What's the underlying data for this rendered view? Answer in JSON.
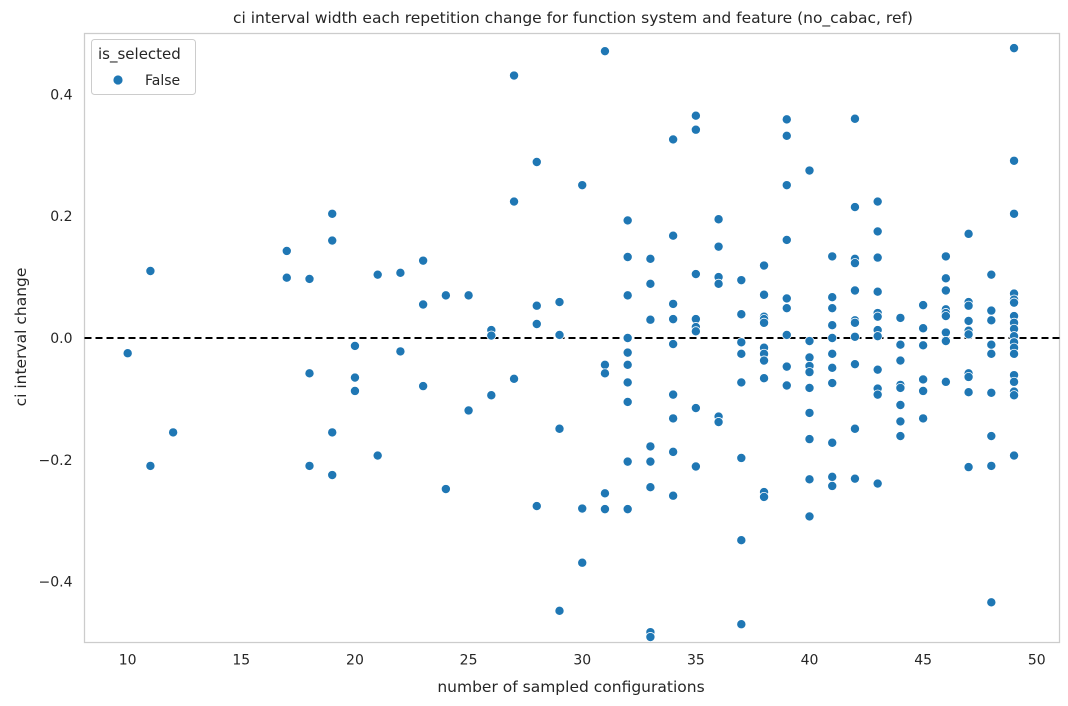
{
  "chart_data": {
    "type": "scatter",
    "title": "ci interval width each repetition change for function system and feature (no_cabac, ref)",
    "xlabel": "number of sampled configurations",
    "ylabel": "ci interval change",
    "xlim": [
      8.1,
      51.0
    ],
    "ylim": [
      -0.5,
      0.5
    ],
    "xticks": [
      10,
      15,
      20,
      25,
      30,
      35,
      40,
      45,
      50
    ],
    "yticks": [
      -0.4,
      -0.2,
      0.0,
      0.2,
      0.4
    ],
    "ytick_labels": [
      "−0.4",
      "−0.2",
      "0.0",
      "0.2",
      "0.4"
    ],
    "reference_line": {
      "y": 0.0,
      "style": "dashed",
      "color": "#000000"
    },
    "grid": false,
    "legend": {
      "title": "is_selected",
      "placement": "top-left",
      "entries": [
        "False"
      ]
    },
    "series": [
      {
        "name": "False",
        "color": "#1f77b4",
        "points": [
          [
            10,
            -0.025
          ],
          [
            11,
            0.11
          ],
          [
            11,
            -0.21
          ],
          [
            12,
            -0.155
          ],
          [
            17,
            0.143
          ],
          [
            17,
            0.099
          ],
          [
            18,
            0.097
          ],
          [
            18,
            -0.058
          ],
          [
            18,
            -0.21
          ],
          [
            19,
            0.204
          ],
          [
            19,
            0.16
          ],
          [
            19,
            -0.155
          ],
          [
            19,
            -0.225
          ],
          [
            20,
            -0.013
          ],
          [
            20,
            -0.065
          ],
          [
            20,
            -0.087
          ],
          [
            21,
            0.104
          ],
          [
            21,
            -0.193
          ],
          [
            22,
            0.107
          ],
          [
            22,
            -0.022
          ],
          [
            23,
            0.127
          ],
          [
            23,
            0.055
          ],
          [
            23,
            -0.079
          ],
          [
            24,
            0.07
          ],
          [
            24,
            -0.248
          ],
          [
            25,
            0.07
          ],
          [
            25,
            -0.119
          ],
          [
            26,
            0.013
          ],
          [
            26,
            0.004
          ],
          [
            26,
            -0.094
          ],
          [
            27,
            0.431
          ],
          [
            27,
            0.224
          ],
          [
            27,
            -0.067
          ],
          [
            28,
            0.289
          ],
          [
            28,
            0.053
          ],
          [
            28,
            0.023
          ],
          [
            28,
            -0.276
          ],
          [
            29,
            0.059
          ],
          [
            29,
            0.005
          ],
          [
            29,
            -0.149
          ],
          [
            29,
            -0.448
          ],
          [
            30,
            0.251
          ],
          [
            30,
            -0.28
          ],
          [
            30,
            -0.369
          ],
          [
            31,
            0.471
          ],
          [
            31,
            -0.044
          ],
          [
            31,
            -0.058
          ],
          [
            31,
            -0.255
          ],
          [
            31,
            -0.281
          ],
          [
            32,
            0.193
          ],
          [
            32,
            0.133
          ],
          [
            32,
            0.07
          ],
          [
            32,
            0.0
          ],
          [
            32,
            -0.024
          ],
          [
            32,
            -0.044
          ],
          [
            32,
            -0.073
          ],
          [
            32,
            -0.105
          ],
          [
            32,
            -0.203
          ],
          [
            32,
            -0.281
          ],
          [
            33,
            0.13
          ],
          [
            33,
            0.089
          ],
          [
            33,
            0.03
          ],
          [
            33,
            -0.178
          ],
          [
            33,
            -0.203
          ],
          [
            33,
            -0.245
          ],
          [
            33,
            -0.483
          ],
          [
            33,
            -0.491
          ],
          [
            34,
            0.326
          ],
          [
            34,
            0.168
          ],
          [
            34,
            0.056
          ],
          [
            34,
            0.031
          ],
          [
            34,
            -0.01
          ],
          [
            34,
            -0.093
          ],
          [
            34,
            -0.132
          ],
          [
            34,
            -0.187
          ],
          [
            34,
            -0.259
          ],
          [
            35,
            0.365
          ],
          [
            35,
            0.342
          ],
          [
            35,
            0.105
          ],
          [
            35,
            0.031
          ],
          [
            35,
            0.018
          ],
          [
            35,
            0.011
          ],
          [
            35,
            -0.115
          ],
          [
            35,
            -0.211
          ],
          [
            36,
            0.195
          ],
          [
            36,
            0.15
          ],
          [
            36,
            0.1
          ],
          [
            36,
            0.089
          ],
          [
            36,
            -0.129
          ],
          [
            36,
            -0.138
          ],
          [
            37,
            0.095
          ],
          [
            37,
            0.039
          ],
          [
            37,
            -0.007
          ],
          [
            37,
            -0.026
          ],
          [
            37,
            -0.073
          ],
          [
            37,
            -0.197
          ],
          [
            37,
            -0.332
          ],
          [
            37,
            -0.47
          ],
          [
            38,
            0.119
          ],
          [
            38,
            0.071
          ],
          [
            38,
            0.035
          ],
          [
            38,
            0.031
          ],
          [
            38,
            0.025
          ],
          [
            38,
            -0.016
          ],
          [
            38,
            -0.026
          ],
          [
            38,
            -0.037
          ],
          [
            38,
            -0.066
          ],
          [
            38,
            -0.253
          ],
          [
            38,
            -0.261
          ],
          [
            39,
            0.359
          ],
          [
            39,
            0.332
          ],
          [
            39,
            0.251
          ],
          [
            39,
            0.161
          ],
          [
            39,
            0.065
          ],
          [
            39,
            0.049
          ],
          [
            39,
            0.005
          ],
          [
            39,
            -0.047
          ],
          [
            39,
            -0.078
          ],
          [
            40,
            0.275
          ],
          [
            40,
            -0.005
          ],
          [
            40,
            -0.032
          ],
          [
            40,
            -0.046
          ],
          [
            40,
            -0.056
          ],
          [
            40,
            -0.082
          ],
          [
            40,
            -0.123
          ],
          [
            40,
            -0.166
          ],
          [
            40,
            -0.232
          ],
          [
            40,
            -0.293
          ],
          [
            41,
            0.134
          ],
          [
            41,
            0.067
          ],
          [
            41,
            0.049
          ],
          [
            41,
            0.021
          ],
          [
            41,
            0.0
          ],
          [
            41,
            -0.026
          ],
          [
            41,
            -0.049
          ],
          [
            41,
            -0.074
          ],
          [
            41,
            -0.172
          ],
          [
            41,
            -0.228
          ],
          [
            41,
            -0.243
          ],
          [
            42,
            0.36
          ],
          [
            42,
            0.215
          ],
          [
            42,
            0.13
          ],
          [
            42,
            0.123
          ],
          [
            42,
            0.078
          ],
          [
            42,
            0.029
          ],
          [
            42,
            0.025
          ],
          [
            42,
            0.002
          ],
          [
            42,
            -0.043
          ],
          [
            42,
            -0.149
          ],
          [
            42,
            -0.231
          ],
          [
            43,
            0.224
          ],
          [
            43,
            0.175
          ],
          [
            43,
            0.132
          ],
          [
            43,
            0.076
          ],
          [
            43,
            0.041
          ],
          [
            43,
            0.035
          ],
          [
            43,
            0.013
          ],
          [
            43,
            0.003
          ],
          [
            43,
            -0.052
          ],
          [
            43,
            -0.083
          ],
          [
            43,
            -0.093
          ],
          [
            43,
            -0.239
          ],
          [
            44,
            0.033
          ],
          [
            44,
            -0.011
          ],
          [
            44,
            -0.037
          ],
          [
            44,
            -0.077
          ],
          [
            44,
            -0.082
          ],
          [
            44,
            -0.11
          ],
          [
            44,
            -0.137
          ],
          [
            44,
            -0.161
          ],
          [
            45,
            0.054
          ],
          [
            45,
            0.016
          ],
          [
            45,
            -0.012
          ],
          [
            45,
            -0.068
          ],
          [
            45,
            -0.087
          ],
          [
            45,
            -0.132
          ],
          [
            46,
            0.134
          ],
          [
            46,
            0.098
          ],
          [
            46,
            0.078
          ],
          [
            46,
            0.047
          ],
          [
            46,
            0.041
          ],
          [
            46,
            0.036
          ],
          [
            46,
            0.009
          ],
          [
            46,
            -0.005
          ],
          [
            46,
            -0.072
          ],
          [
            47,
            0.171
          ],
          [
            47,
            0.059
          ],
          [
            47,
            0.053
          ],
          [
            47,
            0.028
          ],
          [
            47,
            0.012
          ],
          [
            47,
            0.006
          ],
          [
            47,
            -0.058
          ],
          [
            47,
            -0.064
          ],
          [
            47,
            -0.089
          ],
          [
            47,
            -0.212
          ],
          [
            48,
            0.104
          ],
          [
            48,
            0.045
          ],
          [
            48,
            0.029
          ],
          [
            48,
            -0.011
          ],
          [
            48,
            -0.026
          ],
          [
            48,
            -0.09
          ],
          [
            48,
            -0.161
          ],
          [
            48,
            -0.21
          ],
          [
            48,
            -0.434
          ],
          [
            49,
            0.476
          ],
          [
            49,
            0.291
          ],
          [
            49,
            0.204
          ],
          [
            49,
            0.073
          ],
          [
            49,
            0.063
          ],
          [
            49,
            0.058
          ],
          [
            49,
            0.036
          ],
          [
            49,
            0.025
          ],
          [
            49,
            0.015
          ],
          [
            49,
            0.003
          ],
          [
            49,
            -0.007
          ],
          [
            49,
            -0.016
          ],
          [
            49,
            -0.026
          ],
          [
            49,
            -0.061
          ],
          [
            49,
            -0.072
          ],
          [
            49,
            -0.088
          ],
          [
            49,
            -0.094
          ],
          [
            49,
            -0.193
          ]
        ]
      }
    ]
  }
}
